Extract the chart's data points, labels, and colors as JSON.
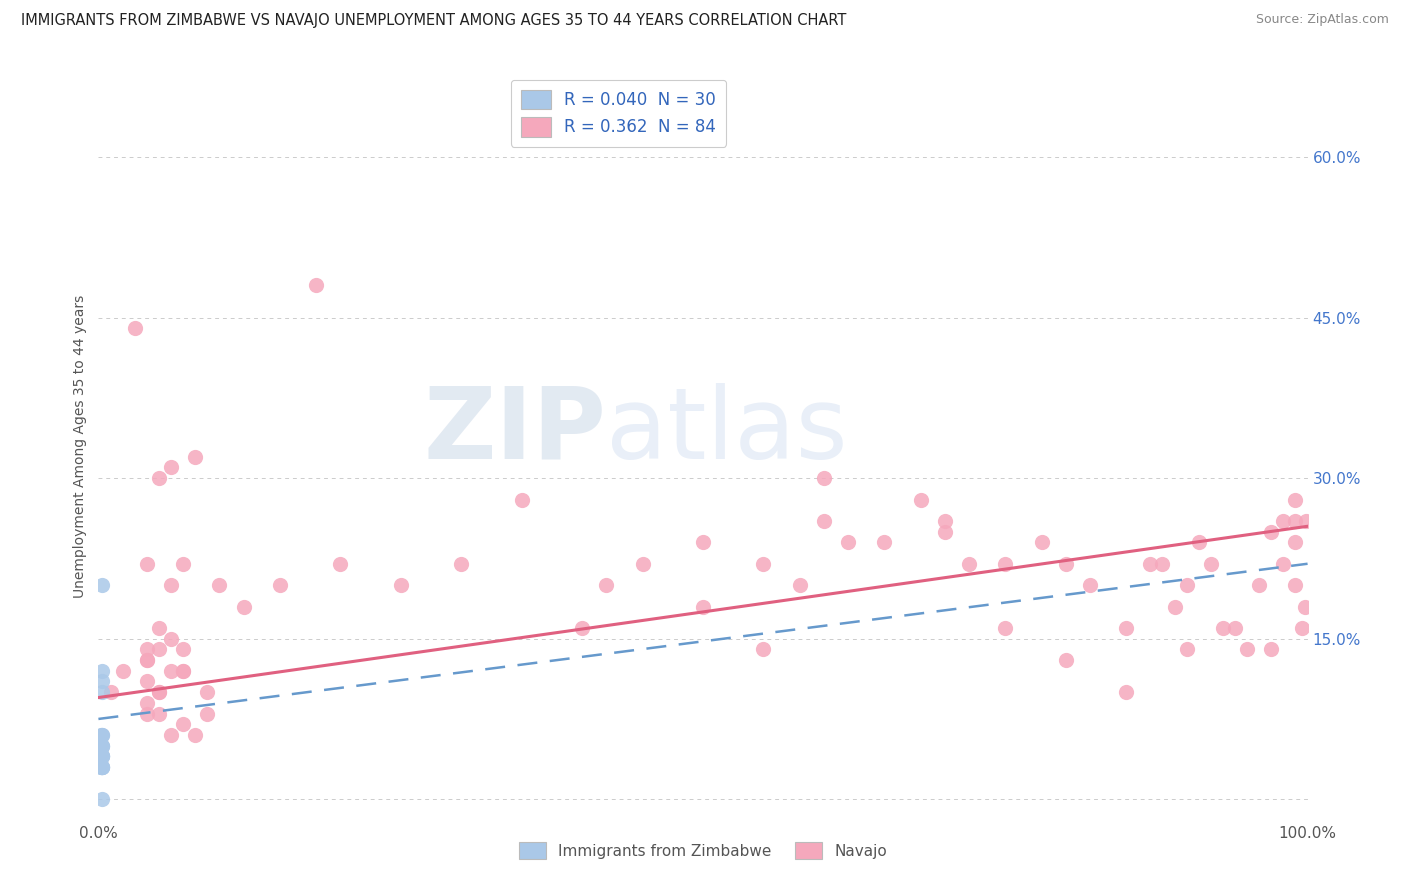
{
  "title": "IMMIGRANTS FROM ZIMBABWE VS NAVAJO UNEMPLOYMENT AMONG AGES 35 TO 44 YEARS CORRELATION CHART",
  "source": "Source: ZipAtlas.com",
  "ylabel": "Unemployment Among Ages 35 to 44 years",
  "xlim": [
    0,
    1.0
  ],
  "ylim": [
    -0.02,
    0.68
  ],
  "xticklabels": [
    "0.0%",
    "100.0%"
  ],
  "yticks_right": [
    0.0,
    0.15,
    0.3,
    0.45,
    0.6
  ],
  "ytick_labels_right": [
    "",
    "15.0%",
    "30.0%",
    "45.0%",
    "60.0%"
  ],
  "legend1_label": "R = 0.040  N = 30",
  "legend2_label": "R = 0.362  N = 84",
  "legend_series1": "Immigrants from Zimbabwe",
  "legend_series2": "Navajo",
  "series1_color": "#aac8e8",
  "series2_color": "#f5a8bc",
  "line1_color": "#6699cc",
  "line2_color": "#e06080",
  "watermark_zip": "ZIP",
  "watermark_atlas": "atlas",
  "blue_points_x": [
    0.002,
    0.003,
    0.002,
    0.003,
    0.003,
    0.002,
    0.003,
    0.003,
    0.003,
    0.002,
    0.002,
    0.002,
    0.002,
    0.002,
    0.003,
    0.003,
    0.002,
    0.002,
    0.003,
    0.002,
    0.003,
    0.003,
    0.003,
    0.003,
    0.002,
    0.003,
    0.003,
    0.003,
    0.003,
    0.003
  ],
  "blue_points_y": [
    0.03,
    0.04,
    0.05,
    0.06,
    0.03,
    0.05,
    0.04,
    0.03,
    0.05,
    0.04,
    0.04,
    0.06,
    0.03,
    0.05,
    0.04,
    0.03,
    0.05,
    0.04,
    0.06,
    0.04,
    0.2,
    0.12,
    0.11,
    0.1,
    0.05,
    0.05,
    0.04,
    0.03,
    0.05,
    0.0
  ],
  "pink_points_x": [
    0.01,
    0.02,
    0.04,
    0.04,
    0.05,
    0.03,
    0.05,
    0.06,
    0.04,
    0.04,
    0.07,
    0.05,
    0.04,
    0.06,
    0.05,
    0.08,
    0.07,
    0.06,
    0.09,
    0.07,
    0.06,
    0.08,
    0.09,
    0.07,
    0.05,
    0.04,
    0.04,
    0.05,
    0.06,
    0.07,
    0.18,
    0.3,
    0.4,
    0.42,
    0.5,
    0.55,
    0.55,
    0.58,
    0.6,
    0.62,
    0.65,
    0.68,
    0.7,
    0.72,
    0.75,
    0.78,
    0.8,
    0.82,
    0.85,
    0.87,
    0.88,
    0.89,
    0.9,
    0.91,
    0.92,
    0.93,
    0.94,
    0.95,
    0.96,
    0.97,
    0.97,
    0.98,
    0.98,
    0.99,
    0.99,
    0.99,
    0.99,
    0.995,
    0.998,
    0.999,
    0.1,
    0.12,
    0.15,
    0.2,
    0.25,
    0.35,
    0.45,
    0.5,
    0.6,
    0.7,
    0.75,
    0.8,
    0.85,
    0.9
  ],
  "pink_points_y": [
    0.1,
    0.12,
    0.13,
    0.14,
    0.1,
    0.44,
    0.3,
    0.12,
    0.09,
    0.08,
    0.07,
    0.1,
    0.11,
    0.06,
    0.08,
    0.06,
    0.14,
    0.2,
    0.08,
    0.22,
    0.31,
    0.32,
    0.1,
    0.12,
    0.14,
    0.13,
    0.22,
    0.16,
    0.15,
    0.12,
    0.48,
    0.22,
    0.16,
    0.2,
    0.24,
    0.14,
    0.22,
    0.2,
    0.26,
    0.24,
    0.24,
    0.28,
    0.25,
    0.22,
    0.22,
    0.24,
    0.22,
    0.2,
    0.16,
    0.22,
    0.22,
    0.18,
    0.2,
    0.24,
    0.22,
    0.16,
    0.16,
    0.14,
    0.2,
    0.14,
    0.25,
    0.26,
    0.22,
    0.2,
    0.26,
    0.28,
    0.24,
    0.16,
    0.18,
    0.26,
    0.2,
    0.18,
    0.2,
    0.22,
    0.2,
    0.28,
    0.22,
    0.18,
    0.3,
    0.26,
    0.16,
    0.13,
    0.1,
    0.14
  ],
  "blue_line_x": [
    0.0,
    1.0
  ],
  "blue_line_y": [
    0.075,
    0.22
  ],
  "pink_line_x": [
    0.0,
    1.0
  ],
  "pink_line_y": [
    0.095,
    0.255
  ]
}
